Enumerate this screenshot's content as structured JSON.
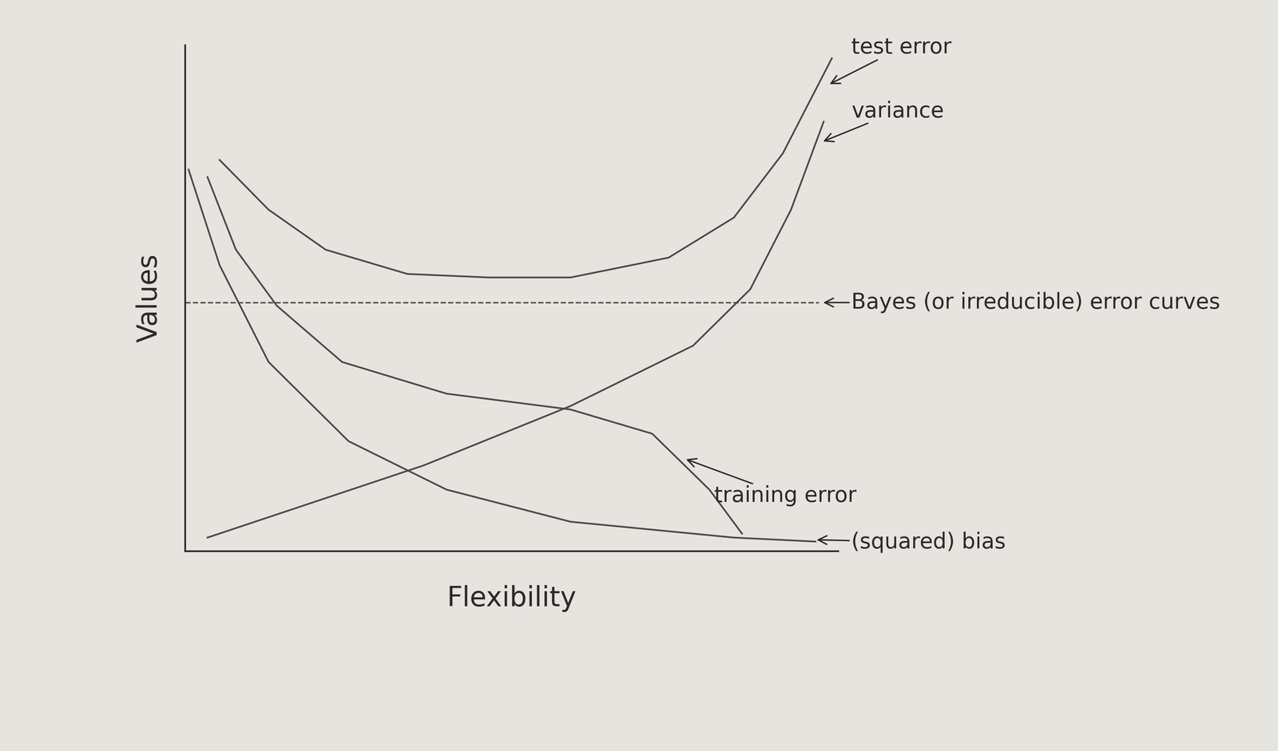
{
  "chart_data": {
    "type": "line",
    "x_label": "Flexibility",
    "y_label": "Values",
    "xlim": [
      0,
      100
    ],
    "ylim": [
      0,
      115
    ],
    "xticks": [],
    "yticks": [],
    "tick_labels": false,
    "grid": false,
    "series": [
      {
        "name": "test error",
        "color": "#4a4a4a",
        "line_style": "solid",
        "x": [
          5.25,
          12.75,
          21.5,
          34,
          46.5,
          59,
          74,
          84,
          91.5,
          99
        ],
        "values": [
          88.9,
          77.6,
          68.5,
          63,
          62.2,
          62.2,
          66.7,
          75.8,
          90.4,
          112
        ]
      },
      {
        "name": "variance",
        "color": "#4a4a4a",
        "line_style": "solid",
        "x": [
          3.4,
          36.5,
          59,
          77.75,
          86.5,
          92.75,
          97.75
        ],
        "values": [
          3.1,
          19.5,
          33,
          46.7,
          59.5,
          77.6,
          97.6
        ]
      },
      {
        "name": "Bayes (or irreducible) error curves",
        "color": "#4a4a4a",
        "line_style": "dashed",
        "x": [
          0,
          97
        ],
        "values": [
          56.5,
          56.5
        ]
      },
      {
        "name": "training error",
        "color": "#4a4a4a",
        "line_style": "solid",
        "x": [
          3.4,
          7.75,
          14,
          24,
          40,
          59,
          71.5,
          80.25,
          85.25
        ],
        "values": [
          85,
          68.5,
          55.8,
          43,
          35.8,
          32.2,
          26.7,
          14,
          4
        ]
      },
      {
        "name": "(squared) bias",
        "color": "#4a4a4a",
        "line_style": "solid",
        "x": [
          0.5,
          5.25,
          12.75,
          25,
          40,
          59,
          84,
          96.5
        ],
        "values": [
          86.7,
          65,
          43,
          25,
          14,
          6.7,
          3.1,
          2.2
        ]
      }
    ]
  }
}
